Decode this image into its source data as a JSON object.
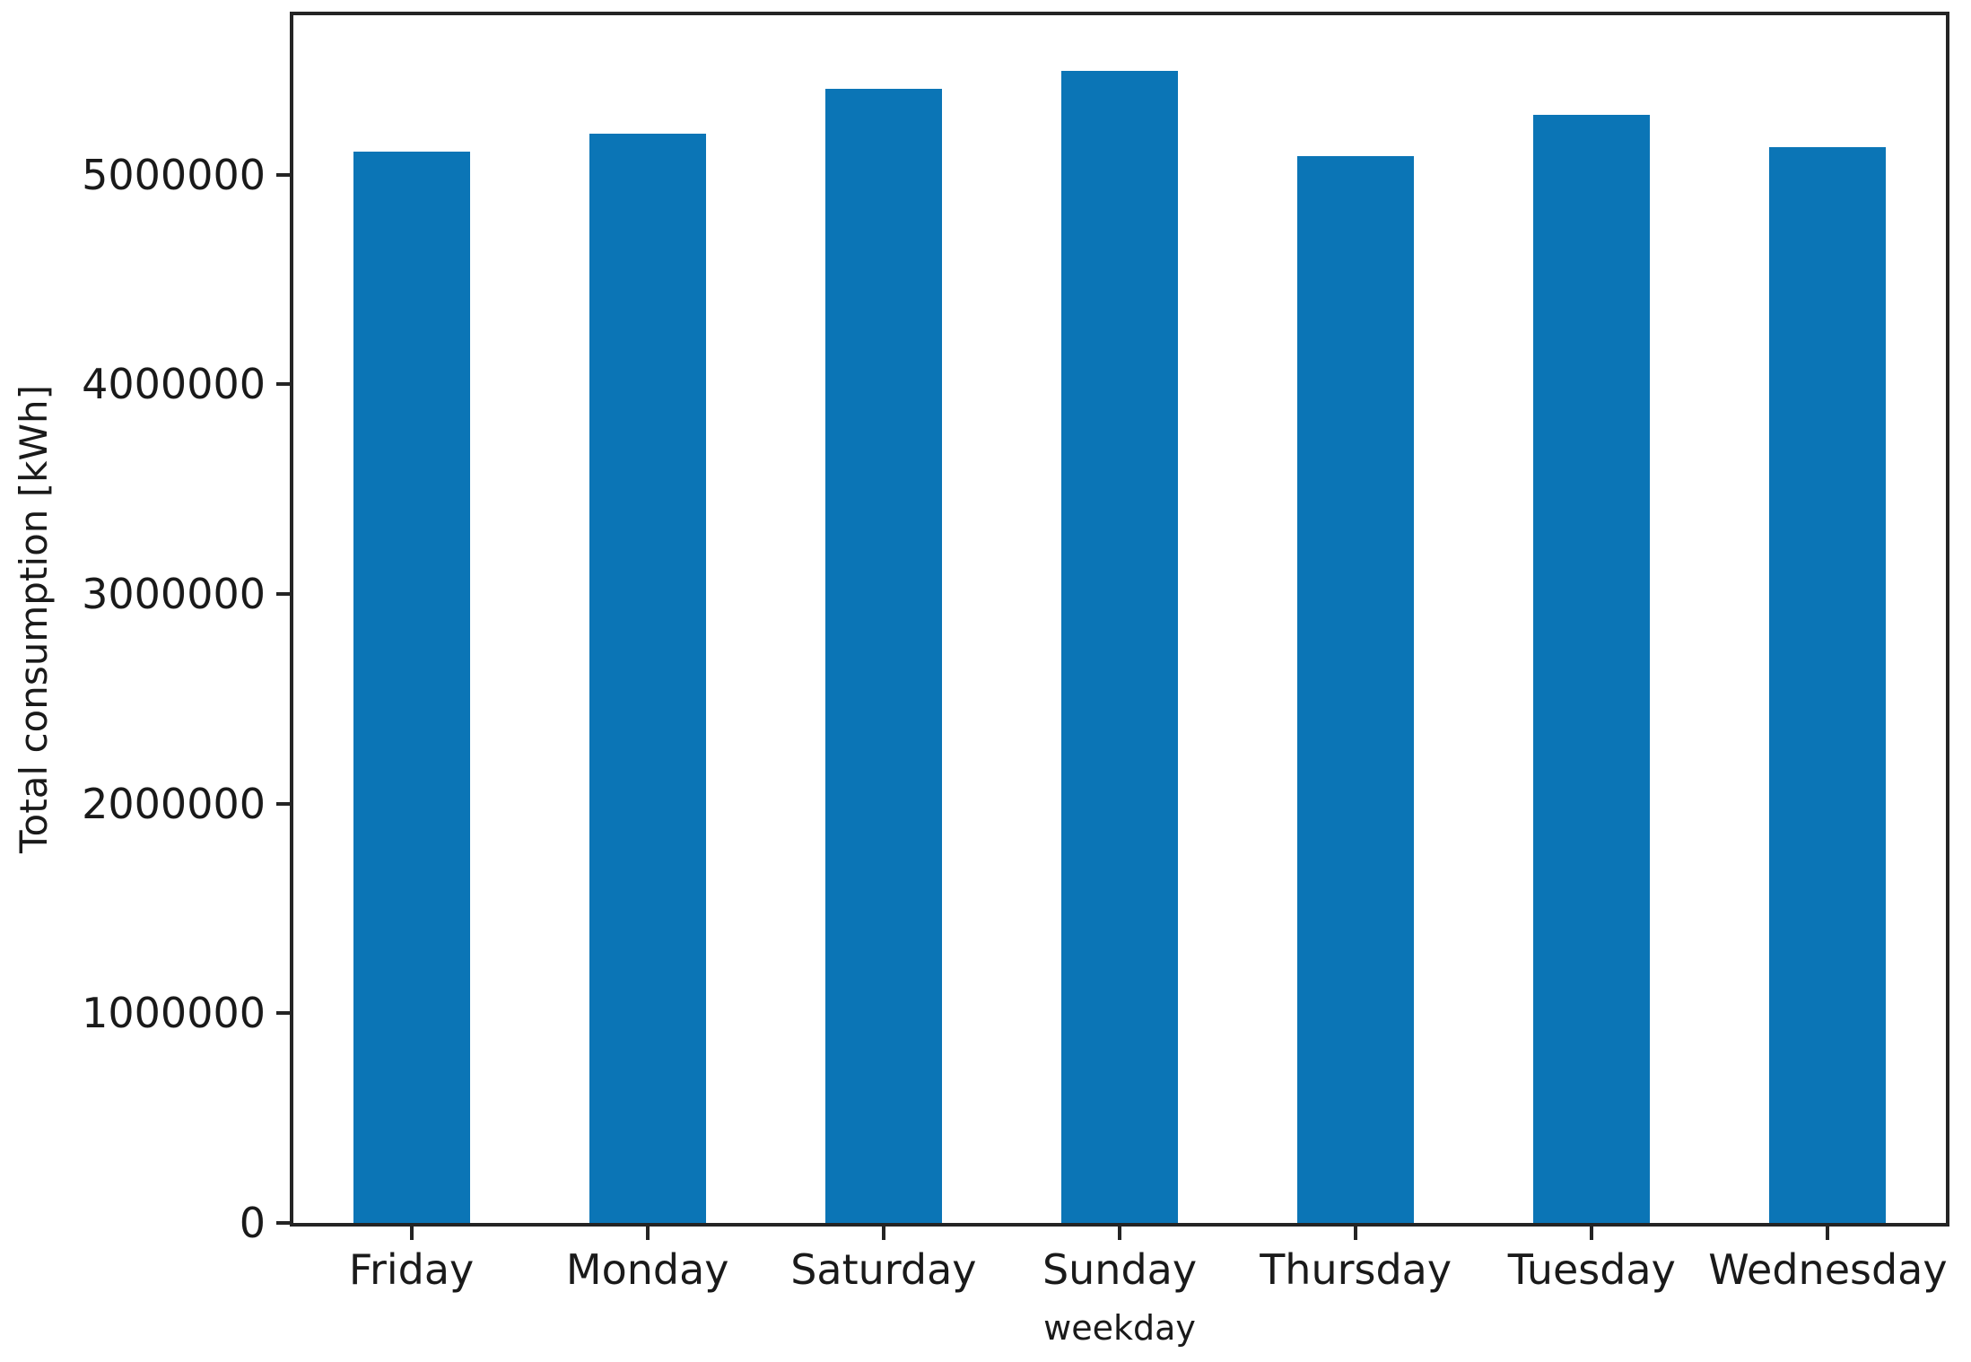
{
  "figure": {
    "background": "#ffffff",
    "frame_color": "#242424",
    "text_color": "#1a1a1a"
  },
  "chart_data": {
    "type": "bar",
    "title": "",
    "xlabel": "weekday",
    "ylabel": "Total consumption [kWh]",
    "categories": [
      "Friday",
      "Monday",
      "Saturday",
      "Sunday",
      "Thursday",
      "Tuesday",
      "Wednesday"
    ],
    "values": [
      5110000,
      5195000,
      5410000,
      5495000,
      5090000,
      5285000,
      5130000
    ],
    "bar_color": "#0b75b6",
    "ylim": [
      0,
      5760000
    ],
    "yticks": [
      0,
      1000000,
      2000000,
      3000000,
      4000000,
      5000000
    ],
    "ytick_labels": [
      "0",
      "1000000",
      "2000000",
      "3000000",
      "4000000",
      "5000000"
    ],
    "grid": false,
    "legend": "none"
  }
}
